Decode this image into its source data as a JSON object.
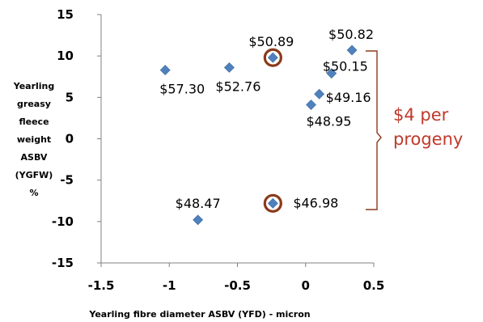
{
  "chart_data": {
    "type": "scatter",
    "xlabel": "Yearling fibre diameter ASBV  (YFD) - micron",
    "ylabel_lines": [
      "Yearling",
      "greasy",
      "fleece",
      "weight",
      "ASBV",
      "(YGFW)",
      "%"
    ],
    "xlim": [
      -1.5,
      0.5
    ],
    "ylim": [
      -15,
      15
    ],
    "x_ticks": [
      -1.5,
      -1,
      -0.5,
      0,
      0.5
    ],
    "x_tick_labels": [
      "-1.5",
      "-1",
      "-0.5",
      "0",
      "0.5"
    ],
    "y_ticks": [
      15,
      10,
      5,
      0,
      -5,
      -10,
      -15
    ],
    "y_tick_labels": [
      "15",
      "10",
      "5",
      "0",
      "-5",
      "-10",
      "-15"
    ],
    "grid": false,
    "marker_color": "#4f81bd",
    "highlight_color": "#8b3a1a",
    "points": [
      {
        "x": -1.03,
        "y": 8.3,
        "label": "$57.30",
        "highlighted": false
      },
      {
        "x": -0.56,
        "y": 8.6,
        "label": "$52.76",
        "highlighted": false
      },
      {
        "x": -0.24,
        "y": 9.8,
        "label": "$50.89",
        "highlighted": true
      },
      {
        "x": 0.34,
        "y": 10.7,
        "label": "$50.82",
        "highlighted": false
      },
      {
        "x": 0.19,
        "y": 7.9,
        "label": "$50.15",
        "highlighted": false
      },
      {
        "x": 0.1,
        "y": 5.4,
        "label": "$49.16",
        "highlighted": false
      },
      {
        "x": 0.04,
        "y": 4.1,
        "label": "$48.95",
        "highlighted": false
      },
      {
        "x": -0.79,
        "y": -9.8,
        "label": "$48.47",
        "highlighted": false
      },
      {
        "x": -0.24,
        "y": -7.8,
        "label": "$46.98",
        "highlighted": true
      }
    ],
    "annotation": {
      "text_lines": [
        "$4 per",
        "progeny"
      ],
      "color": "#c0392b",
      "bracket_color": "#8b3a1a"
    }
  }
}
